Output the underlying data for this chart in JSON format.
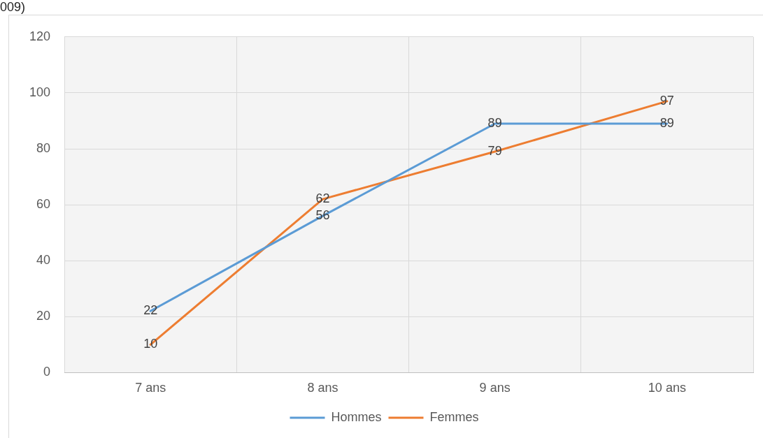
{
  "chart_data": {
    "type": "line",
    "categories": [
      "7 ans",
      "8 ans",
      "9 ans",
      "10 ans"
    ],
    "series": [
      {
        "name": "Hommes",
        "color": "#5b9bd5",
        "values": [
          22,
          56,
          89,
          89
        ]
      },
      {
        "name": "Femmes",
        "color": "#ed7d31",
        "values": [
          10,
          62,
          79,
          97
        ]
      }
    ],
    "ylim": [
      0,
      120
    ],
    "yticks": [
      0,
      20,
      40,
      60,
      80,
      100,
      120
    ],
    "grid": true,
    "legend": "bottom",
    "marker": "none",
    "line_style": "solid",
    "data_labels": true,
    "annotations": [
      "009)"
    ]
  }
}
